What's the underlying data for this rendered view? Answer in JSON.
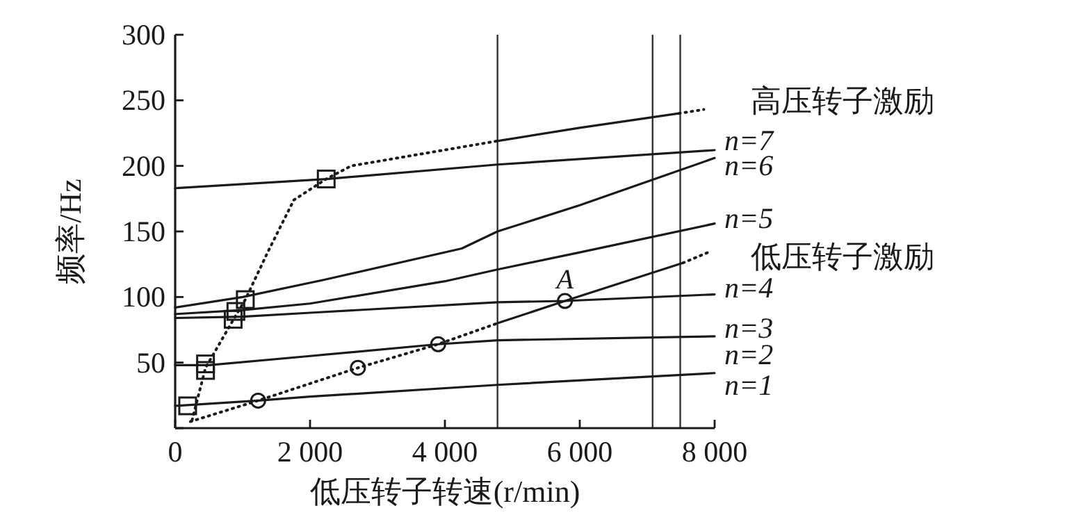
{
  "chart_data": {
    "type": "line",
    "xlabel": "低压转子转速(r/min)",
    "ylabel": "频率/Hz",
    "xlim": [
      0,
      8000
    ],
    "ylim": [
      0,
      300
    ],
    "xticks": [
      0,
      {
        "value": 2000,
        "label": "2 000"
      },
      {
        "value": 4000,
        "label": "4 000"
      },
      {
        "value": 6000,
        "label": "6 000"
      },
      {
        "value": 8000,
        "label": "8 000"
      }
    ],
    "yticks": [
      {
        "value": 0,
        "label": null
      },
      50,
      100,
      150,
      200,
      250,
      300
    ],
    "ref_lines": [
      {
        "axis": "x",
        "value": 4780,
        "color": "#333333"
      },
      {
        "axis": "x",
        "value": 7080,
        "color": "#333333"
      },
      {
        "axis": "x",
        "value": 7490,
        "color": "#333333"
      }
    ],
    "series": [
      {
        "type": "line",
        "color": "#1a1a1a",
        "line_style": "solid",
        "marker": "none",
        "x": [
          0,
          1230,
          2000,
          4780,
          8000
        ],
        "values": [
          17,
          21,
          24,
          33,
          42
        ]
      },
      {
        "type": "line",
        "color": "#1a1a1a",
        "line_style": "solid",
        "marker": "none",
        "x": [
          0,
          500,
          2000,
          3900,
          4780,
          8000
        ],
        "values": [
          48,
          48,
          55,
          64,
          67,
          70
        ]
      },
      {
        "type": "line",
        "color": "#1a1a1a",
        "line_style": "solid",
        "marker": "none",
        "x": [
          0,
          1000,
          2000,
          4780,
          5780,
          8000
        ],
        "values": [
          84,
          85,
          88,
          96,
          97,
          102
        ]
      },
      {
        "type": "line",
        "color": "#1a1a1a",
        "line_style": "solid",
        "marker": "none",
        "x": [
          0,
          1000,
          2000,
          4000,
          4780,
          6000,
          8000
        ],
        "values": [
          87,
          90,
          95,
          112,
          121,
          134,
          156
        ]
      },
      {
        "type": "line",
        "color": "#1a1a1a",
        "line_style": "solid",
        "marker": "none",
        "x": [
          0,
          1000,
          2200,
          4250,
          4780,
          6000,
          8000
        ],
        "values": [
          92,
          100,
          113,
          137,
          150,
          170,
          206
        ]
      },
      {
        "type": "line",
        "color": "#1a1a1a",
        "line_style": "solid",
        "marker": "none",
        "x": [
          0,
          2240,
          4780,
          8000
        ],
        "values": [
          183,
          190,
          201,
          212
        ]
      },
      {
        "type": "line",
        "color": "#1a1a1a",
        "line_style": "dotted",
        "marker": "none",
        "x": [
          250,
          450,
          900,
          1040,
          1380,
          1760,
          2240,
          2610,
          4780
        ],
        "values": [
          6,
          46,
          86,
          98,
          135,
          174,
          190,
          200,
          219
        ]
      },
      {
        "type": "line",
        "color": "#1a1a1a",
        "line_style": "solid",
        "marker": "none",
        "x": [
          4780,
          6000,
          7470
        ],
        "values": [
          219,
          229,
          240
        ]
      },
      {
        "type": "line",
        "color": "#1a1a1a",
        "line_style": "dotted",
        "marker": "none",
        "x": [
          7470,
          7840
        ],
        "values": [
          240,
          243
        ]
      },
      {
        "type": "line",
        "color": "#1a1a1a",
        "line_style": "dotted",
        "marker": "none",
        "x": [
          225,
          1230,
          2710,
          3900,
          4780
        ],
        "values": [
          5,
          21,
          46,
          64,
          80
        ]
      },
      {
        "type": "line",
        "color": "#1a1a1a",
        "line_style": "solid",
        "marker": "none",
        "x": [
          4780,
          5780,
          7530
        ],
        "values": [
          80,
          97,
          126
        ]
      },
      {
        "type": "line",
        "color": "#1a1a1a",
        "line_style": "dotted",
        "marker": "none",
        "x": [
          7530,
          7900
        ],
        "values": [
          126,
          134
        ]
      },
      {
        "type": "scatter",
        "color": "#1a1a1a",
        "marker": "square",
        "x": [
          185,
          450,
          450,
          860,
          900,
          1040,
          2240
        ],
        "values": [
          17,
          49,
          44,
          83,
          89,
          98,
          190
        ]
      },
      {
        "type": "scatter",
        "color": "#1a1a1a",
        "marker": "circle",
        "x": [
          1230,
          2710,
          3900,
          5780
        ],
        "values": [
          21,
          46,
          64,
          97
        ]
      }
    ],
    "annotations": [
      {
        "text": "A",
        "x": 5780,
        "y": 97
      },
      "高压转子激励",
      "低压转子激励",
      "n=7",
      "n=6",
      "n=5",
      "n=4",
      "n=3",
      "n=2",
      "n=1"
    ]
  }
}
